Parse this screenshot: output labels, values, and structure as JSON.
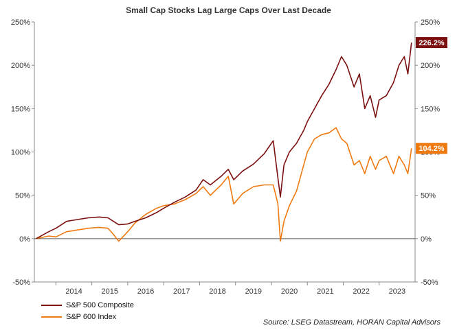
{
  "chart_data": {
    "type": "line",
    "title": "Small Cap Stocks Lag Large Caps Over Last Decade",
    "xlabel": "",
    "ylabel": "",
    "ylim": [
      -50,
      250
    ],
    "xlim": [
      2013.4,
      2024.0
    ],
    "y_ticks": [
      "-50%",
      "0%",
      "50%",
      "100%",
      "150%",
      "200%",
      "250%"
    ],
    "y_tick_values": [
      -50,
      0,
      50,
      100,
      150,
      200,
      250
    ],
    "x_ticks": [
      "2014",
      "2015",
      "2016",
      "2017",
      "2018",
      "2019",
      "2020",
      "2021",
      "2022",
      "2023"
    ],
    "x_tick_values": [
      2014.0,
      2015.0,
      2016.0,
      2017.0,
      2018.0,
      2019.0,
      2020.0,
      2021.0,
      2022.0,
      2023.0
    ],
    "grid": "off",
    "legend_position": "bottom-left",
    "source": "Source: LSEG Datastream, HORAN Capital Advisors",
    "series": [
      {
        "name": "S&P 500 Composite",
        "color": "#7b0f0f",
        "end_label": "226.2%",
        "x": [
          2013.45,
          2013.8,
          2014.0,
          2014.3,
          2014.6,
          2014.9,
          2015.2,
          2015.45,
          2015.6,
          2015.75,
          2016.0,
          2016.2,
          2016.5,
          2016.8,
          2017.0,
          2017.3,
          2017.6,
          2017.9,
          2018.1,
          2018.3,
          2018.6,
          2018.8,
          2018.95,
          2019.2,
          2019.5,
          2019.8,
          2020.05,
          2020.18,
          2020.25,
          2020.35,
          2020.5,
          2020.7,
          2020.9,
          2021.0,
          2021.2,
          2021.4,
          2021.6,
          2021.8,
          2021.95,
          2022.1,
          2022.3,
          2022.45,
          2022.6,
          2022.75,
          2022.9,
          2023.0,
          2023.2,
          2023.4,
          2023.55,
          2023.7,
          2023.8,
          2023.9
        ],
        "values": [
          0,
          8,
          12,
          20,
          22,
          24,
          25,
          24,
          20,
          16,
          17,
          20,
          24,
          30,
          35,
          42,
          48,
          56,
          68,
          62,
          72,
          80,
          68,
          78,
          86,
          98,
          113,
          70,
          48,
          85,
          100,
          110,
          125,
          135,
          150,
          165,
          178,
          195,
          210,
          200,
          175,
          190,
          150,
          165,
          140,
          160,
          165,
          180,
          200,
          210,
          190,
          226.2
        ]
      },
      {
        "name": "S&P 600 Index",
        "color": "#f07a12",
        "end_label": "104.2%",
        "x": [
          2013.45,
          2013.8,
          2014.0,
          2014.3,
          2014.6,
          2014.9,
          2015.2,
          2015.45,
          2015.6,
          2015.75,
          2016.0,
          2016.2,
          2016.5,
          2016.8,
          2017.0,
          2017.3,
          2017.6,
          2017.9,
          2018.1,
          2018.3,
          2018.6,
          2018.8,
          2018.95,
          2019.2,
          2019.5,
          2019.8,
          2020.05,
          2020.18,
          2020.25,
          2020.35,
          2020.5,
          2020.7,
          2020.9,
          2021.0,
          2021.2,
          2021.4,
          2021.6,
          2021.8,
          2021.95,
          2022.1,
          2022.3,
          2022.45,
          2022.6,
          2022.75,
          2022.9,
          2023.0,
          2023.2,
          2023.4,
          2023.55,
          2023.7,
          2023.8,
          2023.9
        ],
        "values": [
          0,
          3,
          2,
          8,
          10,
          12,
          13,
          12,
          5,
          -3,
          8,
          18,
          28,
          35,
          38,
          40,
          45,
          52,
          60,
          50,
          62,
          72,
          40,
          52,
          60,
          62,
          62,
          40,
          -3,
          20,
          38,
          55,
          85,
          100,
          115,
          120,
          122,
          128,
          115,
          110,
          85,
          90,
          75,
          95,
          80,
          90,
          95,
          75,
          95,
          85,
          75,
          104.2
        ]
      }
    ]
  }
}
